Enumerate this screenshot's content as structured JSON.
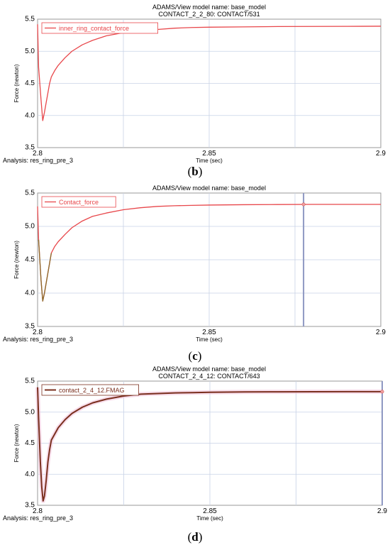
{
  "chart_data": [
    {
      "type": "line",
      "letter": "b",
      "title": "ADAMS/View model name: base_model",
      "subtitle": "CONTACT_2_2_80: CONTACT/531",
      "xlabel": "Time (sec)",
      "ylabel": "Force (newton)",
      "analysis": "Analysis:  res_ring_pre_3",
      "xlim": [
        2.8,
        2.9
      ],
      "ylim": [
        3.5,
        5.5
      ],
      "xticks": [
        2.8,
        2.85,
        2.9
      ],
      "xtick_labels": [
        "2.8",
        "2.85",
        "2.9"
      ],
      "yticks": [
        3.5,
        4.0,
        4.5,
        5.0,
        5.5
      ],
      "ytick_labels": [
        "3.5",
        "4.0",
        "4.5",
        "5.0",
        "5.5"
      ],
      "legend": "top-left",
      "grid": true,
      "series_color": "#e8474b",
      "series": [
        {
          "name": "inner_ring_contact_force",
          "x": [
            2.8,
            2.8003,
            2.801,
            2.8015,
            2.802,
            2.8025,
            2.803,
            2.8035,
            2.804,
            2.805,
            2.806,
            2.808,
            2.81,
            2.813,
            2.816,
            2.82,
            2.825,
            2.83,
            2.835,
            2.84,
            2.845,
            2.85,
            2.86,
            2.87,
            2.88,
            2.89,
            2.9
          ],
          "y": [
            5.42,
            4.75,
            4.25,
            3.92,
            4.05,
            4.2,
            4.35,
            4.5,
            4.6,
            4.7,
            4.78,
            4.9,
            5.0,
            5.1,
            5.17,
            5.24,
            5.29,
            5.32,
            5.34,
            5.36,
            5.37,
            5.375,
            5.38,
            5.385,
            5.387,
            5.388,
            5.39
          ]
        }
      ]
    },
    {
      "type": "line",
      "letter": "c",
      "title": "ADAMS/View model name: base_model",
      "subtitle": "",
      "xlabel": "Time (sec)",
      "ylabel": "Force (newton)",
      "analysis": "Analysis:  res_ring_pre_3",
      "xlim": [
        2.8,
        2.9
      ],
      "ylim": [
        3.5,
        5.5
      ],
      "xticks": [
        2.8,
        2.85,
        2.9
      ],
      "xtick_labels": [
        "2.8",
        "2.85",
        "2.9"
      ],
      "yticks": [
        3.5,
        4.0,
        4.5,
        5.0,
        5.5
      ],
      "ytick_labels": [
        "3.5",
        "4.0",
        "4.5",
        "5.0",
        "5.5"
      ],
      "legend": "top-left",
      "grid": true,
      "series_color": "#e8474b",
      "dip_color": "#8a6a2a",
      "marker_x": 2.8775,
      "series": [
        {
          "name": "Contact_force",
          "x": [
            2.8,
            2.8003,
            2.801,
            2.8015,
            2.802,
            2.8025,
            2.803,
            2.8035,
            2.804,
            2.805,
            2.806,
            2.808,
            2.81,
            2.813,
            2.816,
            2.82,
            2.825,
            2.83,
            2.835,
            2.84,
            2.845,
            2.85,
            2.86,
            2.87,
            2.88,
            2.89,
            2.9
          ],
          "y": [
            5.3,
            4.8,
            4.2,
            3.88,
            4.0,
            4.15,
            4.3,
            4.45,
            4.6,
            4.7,
            4.77,
            4.88,
            4.98,
            5.08,
            5.15,
            5.2,
            5.25,
            5.28,
            5.3,
            5.31,
            5.315,
            5.32,
            5.325,
            5.328,
            5.33,
            5.33,
            5.33
          ]
        }
      ]
    },
    {
      "type": "line",
      "letter": "d",
      "title": "ADAMS/View model name: base_model",
      "subtitle": "CONTACT_2_4_12: CONTACT/643",
      "xlabel": "Time (sec)",
      "ylabel": "Force (newton)",
      "analysis": "Analysis:  res_ring_pre_3",
      "xlim": [
        2.8,
        2.9
      ],
      "ylim": [
        3.5,
        5.5
      ],
      "xticks": [
        2.8,
        2.85,
        2.9
      ],
      "xtick_labels": [
        "2.8",
        "2.85",
        "2.9"
      ],
      "yticks": [
        3.5,
        4.0,
        4.5,
        5.0,
        5.5
      ],
      "ytick_labels": [
        "3.5",
        "4.0",
        "4.5",
        "5.0",
        "5.5"
      ],
      "legend": "top-left",
      "grid": true,
      "series_color": "#7a2f1e",
      "marker_x": 2.9,
      "series": [
        {
          "name": "contact_2_4_12.FMAG",
          "x": [
            2.8,
            2.8003,
            2.8008,
            2.8012,
            2.8016,
            2.802,
            2.8025,
            2.803,
            2.8035,
            2.804,
            2.805,
            2.806,
            2.808,
            2.81,
            2.813,
            2.816,
            2.82,
            2.825,
            2.83,
            2.835,
            2.84,
            2.845,
            2.85,
            2.86,
            2.87,
            2.88,
            2.89,
            2.9
          ],
          "y": [
            5.4,
            4.9,
            4.2,
            3.8,
            3.57,
            3.65,
            3.9,
            4.2,
            4.4,
            4.55,
            4.65,
            4.75,
            4.88,
            4.98,
            5.08,
            5.15,
            5.21,
            5.26,
            5.29,
            5.3,
            5.31,
            5.315,
            5.32,
            5.325,
            5.327,
            5.328,
            5.33,
            5.33
          ]
        }
      ]
    }
  ]
}
